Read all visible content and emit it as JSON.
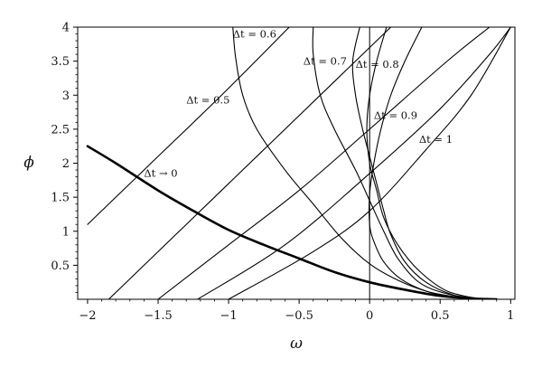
{
  "chart_data": {
    "type": "line",
    "xlabel": "ω",
    "ylabel": "ϕ",
    "xlim": [
      -2.07,
      1.03
    ],
    "ylim": [
      0,
      4
    ],
    "x_ticks": [
      -2,
      -1.5,
      -1,
      -0.5,
      0,
      0.5,
      1
    ],
    "x_tick_labels": [
      "−2",
      "−1.5",
      "−1",
      "−0.5",
      "0",
      "0.5",
      "1"
    ],
    "y_ticks": [
      0.5,
      1,
      1.5,
      2,
      2.5,
      3,
      3.5,
      4
    ],
    "y_tick_labels": [
      "0.5",
      "1",
      "1.5",
      "2",
      "2.5",
      "3",
      "3.5",
      "4"
    ],
    "grid": false,
    "vertical_reference_line_x": 0,
    "stroke_color": "#000000",
    "series": [
      {
        "name": "Δt → 0",
        "emphasis": "thick",
        "points": [
          [
            -2.0,
            2.25
          ],
          [
            -1.8,
            2.0
          ],
          [
            -1.5,
            1.6
          ],
          [
            -1.25,
            1.3
          ],
          [
            -1.0,
            1.02
          ],
          [
            -0.75,
            0.8
          ],
          [
            -0.5,
            0.6
          ],
          [
            -0.25,
            0.4
          ],
          [
            0.0,
            0.25
          ],
          [
            0.25,
            0.14
          ],
          [
            0.5,
            0.05
          ],
          [
            0.75,
            0.01
          ],
          [
            0.9,
            0.0
          ]
        ]
      },
      {
        "name": "Δt = 0.5",
        "points": [
          [
            -2.0,
            1.1
          ],
          [
            -1.55,
            2.0
          ],
          [
            -1.05,
            3.0
          ],
          [
            -0.57,
            4.0
          ]
        ]
      },
      {
        "name": "Δt = 0.6",
        "points": [
          [
            -0.97,
            4.0
          ],
          [
            -0.95,
            3.55
          ],
          [
            -0.9,
            3.0
          ],
          [
            -0.8,
            2.5
          ],
          [
            -0.6,
            1.9
          ],
          [
            -0.4,
            1.4
          ],
          [
            -0.2,
            0.9
          ],
          [
            0.0,
            0.52
          ],
          [
            0.2,
            0.28
          ],
          [
            0.4,
            0.12
          ],
          [
            0.6,
            0.04
          ],
          [
            0.8,
            0.0
          ]
        ]
      },
      {
        "name": "Δt = 0.7",
        "points": [
          [
            -0.4,
            4.0
          ],
          [
            -0.4,
            3.6
          ],
          [
            -0.35,
            3.0
          ],
          [
            -0.25,
            2.5
          ],
          [
            -0.1,
            1.9
          ],
          [
            0.0,
            1.45
          ],
          [
            0.1,
            1.0
          ],
          [
            0.2,
            0.6
          ],
          [
            0.35,
            0.25
          ],
          [
            0.55,
            0.08
          ],
          [
            0.8,
            0.0
          ]
        ]
      },
      {
        "name": "Δt = 0.8",
        "points": [
          [
            -0.07,
            4.0
          ],
          [
            -0.12,
            3.5
          ],
          [
            -0.1,
            3.0
          ],
          [
            -0.05,
            2.5
          ],
          [
            0.0,
            2.1
          ],
          [
            0.05,
            1.7
          ],
          [
            0.1,
            1.3
          ],
          [
            0.15,
            0.95
          ],
          [
            0.25,
            0.55
          ],
          [
            0.4,
            0.25
          ],
          [
            0.6,
            0.06
          ],
          [
            0.8,
            0.0
          ]
        ]
      },
      {
        "name": "Δt = 0.9",
        "points": [
          [
            0.12,
            4.0
          ],
          [
            0.05,
            3.5
          ],
          [
            0.0,
            3.0
          ],
          [
            -0.02,
            2.5
          ],
          [
            0.0,
            2.0
          ],
          [
            0.05,
            1.6
          ],
          [
            0.1,
            1.2
          ],
          [
            0.2,
            0.8
          ],
          [
            0.35,
            0.42
          ],
          [
            0.55,
            0.12
          ],
          [
            0.8,
            0.0
          ]
        ]
      },
      {
        "name": "Δt = 1",
        "points": [
          [
            0.37,
            4.0
          ],
          [
            0.25,
            3.5
          ],
          [
            0.15,
            3.0
          ],
          [
            0.08,
            2.5
          ],
          [
            0.03,
            2.0
          ],
          [
            0.0,
            1.55
          ],
          [
            0.0,
            1.1
          ],
          [
            0.03,
            0.85
          ],
          [
            0.1,
            0.55
          ],
          [
            0.22,
            0.3
          ],
          [
            0.4,
            0.12
          ],
          [
            0.6,
            0.03
          ],
          [
            0.8,
            0.0
          ]
        ]
      },
      {
        "name": "",
        "points": [
          [
            -1.85,
            0.0
          ],
          [
            -1.3,
            1.1
          ],
          [
            -0.75,
            2.2
          ],
          [
            -0.25,
            3.2
          ],
          [
            0.15,
            4.0
          ]
        ]
      },
      {
        "name": "",
        "points": [
          [
            -1.5,
            0.0
          ],
          [
            -1.0,
            0.8
          ],
          [
            -0.5,
            1.6
          ],
          [
            0.0,
            2.5
          ],
          [
            0.55,
            3.5
          ],
          [
            0.85,
            4.0
          ]
        ]
      },
      {
        "name": "",
        "points": [
          [
            -1.22,
            0.0
          ],
          [
            -0.6,
            0.8
          ],
          [
            0.0,
            1.85
          ],
          [
            0.5,
            2.8
          ],
          [
            0.85,
            3.6
          ],
          [
            1.0,
            4.0
          ]
        ]
      },
      {
        "name": "",
        "points": [
          [
            -1.0,
            0.0
          ],
          [
            -0.4,
            0.7
          ],
          [
            0.0,
            1.3
          ],
          [
            0.4,
            2.2
          ],
          [
            0.72,
            3.0
          ],
          [
            1.0,
            4.0
          ]
        ]
      }
    ],
    "annotations": [
      {
        "text": "Δt = 0.6",
        "x": -0.97,
        "y": 3.85
      },
      {
        "text": "Δt = 0.7",
        "x": -0.47,
        "y": 3.45
      },
      {
        "text": "Δt = 0.8",
        "x": -0.1,
        "y": 3.4
      },
      {
        "text": "Δt = 0.5",
        "x": -1.3,
        "y": 2.88
      },
      {
        "text": "Δt = 0.9",
        "x": 0.03,
        "y": 2.65
      },
      {
        "text": "Δt = 1",
        "x": 0.35,
        "y": 2.3
      },
      {
        "text": "Δt → 0",
        "x": -1.6,
        "y": 1.8
      }
    ]
  }
}
